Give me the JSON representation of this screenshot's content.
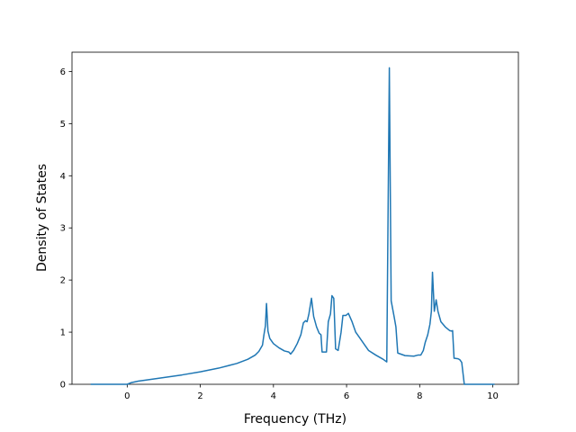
{
  "chart_data": {
    "type": "line",
    "xlabel": "Frequency (THz)",
    "ylabel": "Density of States",
    "x": [
      -1,
      0,
      0.1,
      0.3,
      0.5,
      1,
      1.5,
      2,
      2.5,
      3,
      3.3,
      3.5,
      3.6,
      3.7,
      3.74,
      3.78,
      3.81,
      3.85,
      3.9,
      4.0,
      4.15,
      4.3,
      4.42,
      4.47,
      4.55,
      4.65,
      4.75,
      4.82,
      4.88,
      4.92,
      4.97,
      5.04,
      5.1,
      5.18,
      5.25,
      5.3,
      5.33,
      5.45,
      5.5,
      5.56,
      5.6,
      5.65,
      5.7,
      5.77,
      5.85,
      5.9,
      5.98,
      6.05,
      6.15,
      6.25,
      6.35,
      6.5,
      6.6,
      6.8,
      7.0,
      7.1,
      7.17,
      7.22,
      7.3,
      7.35,
      7.4,
      7.6,
      7.84,
      7.95,
      8.03,
      8.1,
      8.15,
      8.22,
      8.28,
      8.32,
      8.35,
      8.4,
      8.45,
      8.5,
      8.58,
      8.7,
      8.82,
      8.88,
      8.9,
      8.94,
      9.05,
      9.1,
      9.15,
      9.22,
      10.05
    ],
    "series": [
      {
        "color": "#1f77b4",
        "values": [
          0,
          0,
          0.03,
          0.06,
          0.08,
          0.13,
          0.18,
          0.24,
          0.31,
          0.4,
          0.48,
          0.56,
          0.63,
          0.75,
          0.95,
          1.12,
          1.55,
          1.02,
          0.88,
          0.78,
          0.7,
          0.64,
          0.62,
          0.58,
          0.65,
          0.78,
          0.95,
          1.18,
          1.22,
          1.2,
          1.35,
          1.65,
          1.3,
          1.1,
          0.98,
          0.95,
          0.62,
          0.62,
          1.2,
          1.35,
          1.7,
          1.65,
          0.68,
          0.65,
          1.0,
          1.32,
          1.32,
          1.36,
          1.2,
          1.0,
          0.9,
          0.75,
          0.65,
          0.56,
          0.48,
          0.43,
          6.07,
          1.6,
          1.3,
          1.1,
          0.6,
          0.55,
          0.54,
          0.56,
          0.56,
          0.65,
          0.8,
          0.95,
          1.15,
          1.4,
          2.15,
          1.4,
          1.62,
          1.4,
          1.2,
          1.1,
          1.03,
          1.02,
          1.03,
          0.5,
          0.49,
          0.47,
          0.42,
          0,
          0
        ]
      }
    ],
    "xlim": [
      -1.51,
      10.7
    ],
    "ylim": [
      0,
      6.37
    ],
    "xticks": [
      0,
      2,
      4,
      6,
      8,
      10
    ],
    "yticks": [
      0,
      1,
      2,
      3,
      4,
      5,
      6
    ]
  }
}
